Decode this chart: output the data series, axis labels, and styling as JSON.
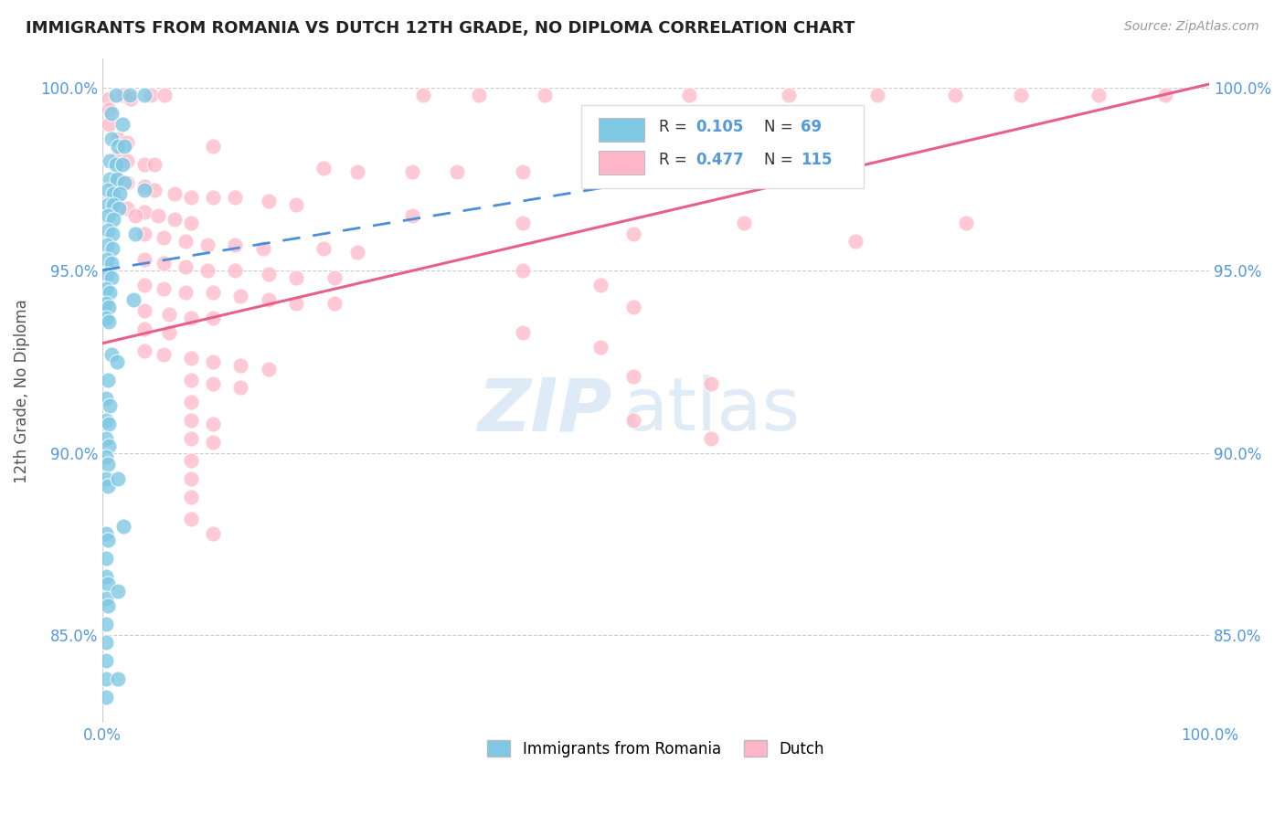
{
  "title": "IMMIGRANTS FROM ROMANIA VS DUTCH 12TH GRADE, NO DIPLOMA CORRELATION CHART",
  "source": "Source: ZipAtlas.com",
  "ylabel": "12th Grade, No Diploma",
  "blue_color": "#7ec8e3",
  "pink_color": "#ffb6c8",
  "blue_line_color": "#4a90d9",
  "pink_line_color": "#e8608a",
  "title_color": "#222222",
  "axis_label_color": "#5599dd",
  "watermark_zip": "ZIP",
  "watermark_atlas": "atlas",
  "legend_label1": "Immigrants from Romania",
  "legend_label2": "Dutch",
  "xlim": [
    0.0,
    1.0
  ],
  "ylim": [
    0.826,
    1.008
  ],
  "yticks": [
    0.85,
    0.9,
    0.95,
    1.0
  ],
  "ytick_labels": [
    "85.0%",
    "90.0%",
    "95.0%",
    "100.0%"
  ],
  "blue_line": {
    "x0": 0.0,
    "x1": 0.5,
    "y0": 0.95,
    "y1": 0.975
  },
  "pink_line": {
    "x0": 0.0,
    "x1": 1.0,
    "y0": 0.93,
    "y1": 1.001
  },
  "scatter_blue": [
    [
      0.012,
      0.998
    ],
    [
      0.025,
      0.998
    ],
    [
      0.038,
      0.998
    ],
    [
      0.008,
      0.993
    ],
    [
      0.018,
      0.99
    ],
    [
      0.008,
      0.986
    ],
    [
      0.014,
      0.984
    ],
    [
      0.02,
      0.984
    ],
    [
      0.007,
      0.98
    ],
    [
      0.012,
      0.979
    ],
    [
      0.018,
      0.979
    ],
    [
      0.007,
      0.975
    ],
    [
      0.013,
      0.975
    ],
    [
      0.02,
      0.974
    ],
    [
      0.005,
      0.972
    ],
    [
      0.01,
      0.971
    ],
    [
      0.016,
      0.971
    ],
    [
      0.005,
      0.968
    ],
    [
      0.01,
      0.968
    ],
    [
      0.015,
      0.967
    ],
    [
      0.005,
      0.965
    ],
    [
      0.01,
      0.964
    ],
    [
      0.005,
      0.961
    ],
    [
      0.009,
      0.96
    ],
    [
      0.004,
      0.957
    ],
    [
      0.009,
      0.956
    ],
    [
      0.004,
      0.953
    ],
    [
      0.008,
      0.952
    ],
    [
      0.004,
      0.949
    ],
    [
      0.008,
      0.948
    ],
    [
      0.003,
      0.945
    ],
    [
      0.007,
      0.944
    ],
    [
      0.003,
      0.941
    ],
    [
      0.006,
      0.94
    ],
    [
      0.003,
      0.937
    ],
    [
      0.006,
      0.936
    ],
    [
      0.038,
      0.972
    ],
    [
      0.008,
      0.927
    ],
    [
      0.013,
      0.925
    ],
    [
      0.005,
      0.92
    ],
    [
      0.003,
      0.915
    ],
    [
      0.007,
      0.913
    ],
    [
      0.003,
      0.909
    ],
    [
      0.006,
      0.908
    ],
    [
      0.003,
      0.904
    ],
    [
      0.006,
      0.902
    ],
    [
      0.003,
      0.899
    ],
    [
      0.005,
      0.897
    ],
    [
      0.003,
      0.893
    ],
    [
      0.005,
      0.891
    ],
    [
      0.014,
      0.893
    ],
    [
      0.019,
      0.88
    ],
    [
      0.003,
      0.878
    ],
    [
      0.005,
      0.876
    ],
    [
      0.003,
      0.871
    ],
    [
      0.003,
      0.866
    ],
    [
      0.005,
      0.864
    ],
    [
      0.003,
      0.86
    ],
    [
      0.005,
      0.858
    ],
    [
      0.003,
      0.853
    ],
    [
      0.003,
      0.848
    ],
    [
      0.003,
      0.843
    ],
    [
      0.003,
      0.838
    ],
    [
      0.014,
      0.838
    ],
    [
      0.003,
      0.833
    ],
    [
      0.014,
      0.862
    ],
    [
      0.03,
      0.96
    ],
    [
      0.028,
      0.942
    ]
  ],
  "scatter_pink": [
    [
      0.006,
      0.997
    ],
    [
      0.018,
      0.998
    ],
    [
      0.026,
      0.997
    ],
    [
      0.044,
      0.998
    ],
    [
      0.056,
      0.998
    ],
    [
      0.29,
      0.998
    ],
    [
      0.34,
      0.998
    ],
    [
      0.4,
      0.998
    ],
    [
      0.53,
      0.998
    ],
    [
      0.62,
      0.998
    ],
    [
      0.7,
      0.998
    ],
    [
      0.77,
      0.998
    ],
    [
      0.83,
      0.998
    ],
    [
      0.9,
      0.998
    ],
    [
      0.96,
      0.998
    ],
    [
      0.006,
      0.994
    ],
    [
      0.006,
      0.99
    ],
    [
      0.014,
      0.986
    ],
    [
      0.022,
      0.985
    ],
    [
      0.1,
      0.984
    ],
    [
      0.014,
      0.981
    ],
    [
      0.022,
      0.98
    ],
    [
      0.038,
      0.979
    ],
    [
      0.047,
      0.979
    ],
    [
      0.2,
      0.978
    ],
    [
      0.23,
      0.977
    ],
    [
      0.28,
      0.977
    ],
    [
      0.32,
      0.977
    ],
    [
      0.38,
      0.977
    ],
    [
      0.45,
      0.977
    ],
    [
      0.014,
      0.975
    ],
    [
      0.022,
      0.974
    ],
    [
      0.038,
      0.973
    ],
    [
      0.047,
      0.972
    ],
    [
      0.065,
      0.971
    ],
    [
      0.08,
      0.97
    ],
    [
      0.1,
      0.97
    ],
    [
      0.12,
      0.97
    ],
    [
      0.15,
      0.969
    ],
    [
      0.175,
      0.968
    ],
    [
      0.014,
      0.968
    ],
    [
      0.022,
      0.967
    ],
    [
      0.038,
      0.966
    ],
    [
      0.05,
      0.965
    ],
    [
      0.065,
      0.964
    ],
    [
      0.08,
      0.963
    ],
    [
      0.038,
      0.96
    ],
    [
      0.055,
      0.959
    ],
    [
      0.075,
      0.958
    ],
    [
      0.095,
      0.957
    ],
    [
      0.12,
      0.957
    ],
    [
      0.145,
      0.956
    ],
    [
      0.2,
      0.956
    ],
    [
      0.23,
      0.955
    ],
    [
      0.038,
      0.953
    ],
    [
      0.055,
      0.952
    ],
    [
      0.075,
      0.951
    ],
    [
      0.095,
      0.95
    ],
    [
      0.12,
      0.95
    ],
    [
      0.15,
      0.949
    ],
    [
      0.175,
      0.948
    ],
    [
      0.21,
      0.948
    ],
    [
      0.038,
      0.946
    ],
    [
      0.055,
      0.945
    ],
    [
      0.075,
      0.944
    ],
    [
      0.1,
      0.944
    ],
    [
      0.125,
      0.943
    ],
    [
      0.15,
      0.942
    ],
    [
      0.175,
      0.941
    ],
    [
      0.21,
      0.941
    ],
    [
      0.038,
      0.939
    ],
    [
      0.06,
      0.938
    ],
    [
      0.08,
      0.937
    ],
    [
      0.1,
      0.937
    ],
    [
      0.038,
      0.934
    ],
    [
      0.06,
      0.933
    ],
    [
      0.038,
      0.928
    ],
    [
      0.055,
      0.927
    ],
    [
      0.08,
      0.926
    ],
    [
      0.1,
      0.925
    ],
    [
      0.125,
      0.924
    ],
    [
      0.15,
      0.923
    ],
    [
      0.08,
      0.92
    ],
    [
      0.1,
      0.919
    ],
    [
      0.125,
      0.918
    ],
    [
      0.08,
      0.914
    ],
    [
      0.08,
      0.909
    ],
    [
      0.1,
      0.908
    ],
    [
      0.08,
      0.904
    ],
    [
      0.1,
      0.903
    ],
    [
      0.08,
      0.898
    ],
    [
      0.08,
      0.893
    ],
    [
      0.08,
      0.888
    ],
    [
      0.08,
      0.882
    ],
    [
      0.1,
      0.878
    ],
    [
      0.03,
      0.965
    ],
    [
      0.28,
      0.965
    ],
    [
      0.38,
      0.963
    ],
    [
      0.48,
      0.96
    ],
    [
      0.58,
      0.963
    ],
    [
      0.68,
      0.958
    ],
    [
      0.78,
      0.963
    ],
    [
      0.38,
      0.95
    ],
    [
      0.45,
      0.946
    ],
    [
      0.48,
      0.94
    ],
    [
      0.38,
      0.933
    ],
    [
      0.45,
      0.929
    ],
    [
      0.48,
      0.921
    ],
    [
      0.55,
      0.919
    ],
    [
      0.48,
      0.909
    ],
    [
      0.55,
      0.904
    ]
  ]
}
